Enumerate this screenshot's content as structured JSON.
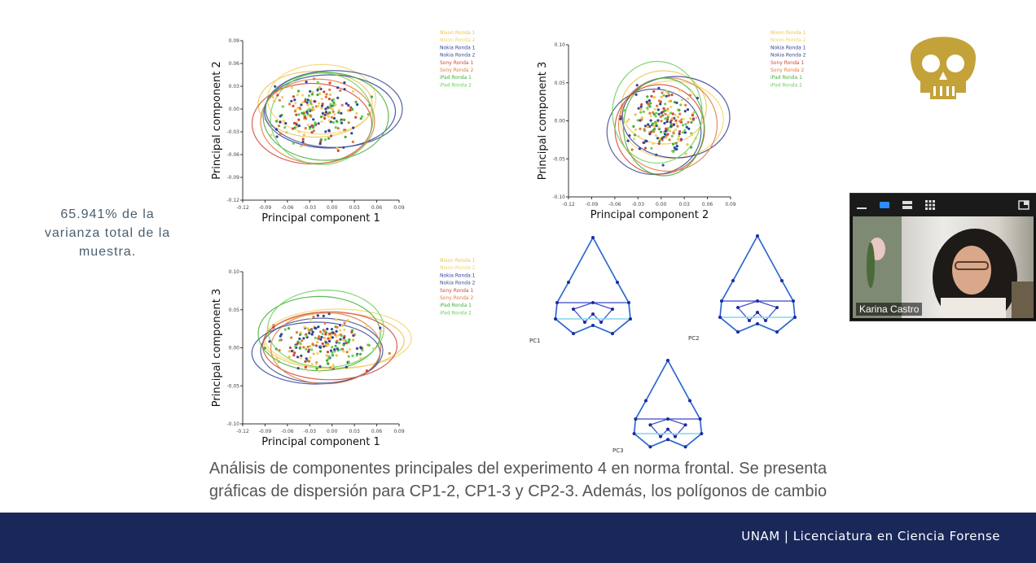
{
  "variance_text": [
    "65.941% de la",
    "varianza total de la",
    "muestra."
  ],
  "caption": [
    "Análisis de componentes principales del experimento 4 en norma frontal. Se presenta",
    "gráficas de dispersión para CP1-2, CP1-3 y CP2-3. Además, los polígonos de cambio"
  ],
  "footer": "UNAM | Licenciatura en Ciencia Forense",
  "participant": {
    "name": "Karina Castro"
  },
  "legend": [
    "Nixon Ronda 1",
    "Nixon Ronda 2",
    "Nokia Ronda 1",
    "Nokia Ronda 2",
    "Sony Ronda 1",
    "Sony Ronda 2",
    "iPad Ronda 1",
    "iPad Ronda 2"
  ],
  "colors": {
    "accent": "#c4a23a",
    "footer_bg": "#1a2759",
    "series": [
      "#f0c24a",
      "#f3d36a",
      "#2f3f9e",
      "#3a4b8c",
      "#d0463a",
      "#e07a3a",
      "#3fae3a",
      "#6ccf5a"
    ]
  },
  "polygon_labels": [
    "PC1",
    "PC2",
    "PC3"
  ],
  "chart_data": [
    {
      "type": "scatter",
      "xlabel": "Principal component 1",
      "ylabel": "Principal component 2",
      "xlim": [
        -0.12,
        0.09
      ],
      "ylim": [
        -0.12,
        0.09
      ],
      "x_ticks": [
        "-0.12",
        "-0.09",
        "-0.06",
        "-0.03",
        "0.00",
        "0.03",
        "0.06",
        "0.09"
      ],
      "y_ticks": [
        "0.09",
        "0.06",
        "0.03",
        "0.00",
        "-0.03",
        "-0.06",
        "-0.09",
        "-0.12"
      ]
    },
    {
      "type": "scatter",
      "xlabel": "Principal component 2",
      "ylabel": "Principal component 3",
      "xlim": [
        -0.12,
        0.09
      ],
      "ylim": [
        -0.1,
        0.1
      ],
      "x_ticks": [
        "-0.12",
        "-0.09",
        "-0.06",
        "-0.03",
        "0.00",
        "0.03",
        "0.06",
        "0.09"
      ],
      "y_ticks": [
        "0.10",
        "0.05",
        "0.00",
        "-0.05",
        "-0.10"
      ]
    },
    {
      "type": "scatter",
      "xlabel": "Principal component 1",
      "ylabel": "Principal component 3",
      "xlim": [
        -0.12,
        0.09
      ],
      "ylim": [
        -0.1,
        0.1
      ],
      "x_ticks": [
        "-0.12",
        "-0.09",
        "-0.06",
        "-0.03",
        "0.00",
        "0.03",
        "0.06",
        "0.09"
      ],
      "y_ticks": [
        "0.10",
        "0.05",
        "0.00",
        "-0.05",
        "-0.10"
      ]
    }
  ]
}
